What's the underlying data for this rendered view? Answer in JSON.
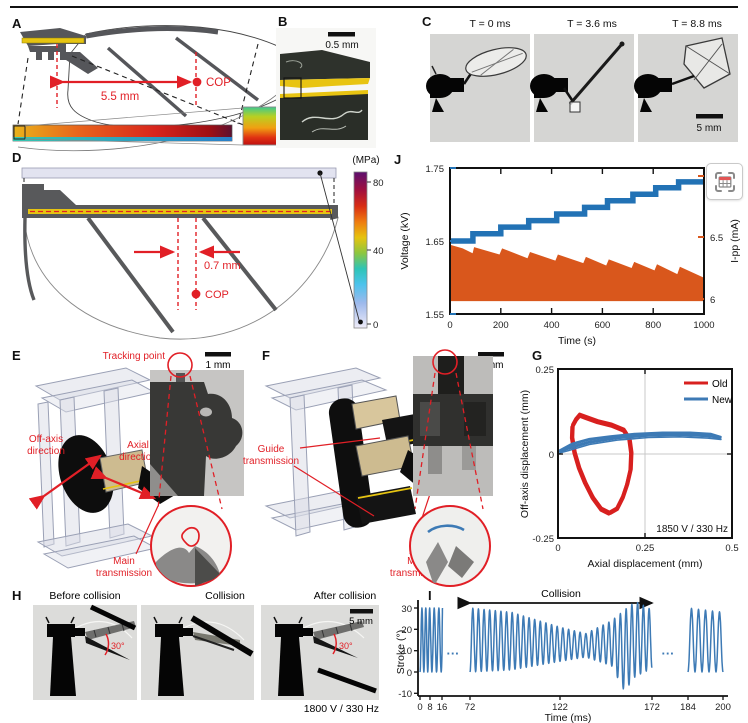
{
  "colors": {
    "red": "#e11f26",
    "blue": "#2272b5",
    "orange": "#d9571c",
    "yellow": "#e6c412",
    "wing_gray": "#55565a"
  },
  "panel_a": {
    "label": "A",
    "distance": "5.5 mm",
    "cop": "COP"
  },
  "panel_b": {
    "label": "B",
    "scale": "0.5 mm"
  },
  "panel_c": {
    "label": "C",
    "frames": [
      "T = 0 ms",
      "T = 3.6 ms",
      "T = 8.8 ms"
    ],
    "scale": "5 mm"
  },
  "panel_d": {
    "label": "D",
    "distance": "0.7 mm",
    "cop": "COP",
    "colorbar_title": "(MPa)",
    "colorbar_ticks": [
      "80",
      "40",
      "0"
    ]
  },
  "panel_e": {
    "label": "E",
    "scale": "1 mm",
    "tracking": "Tracking point",
    "offaxis1": "Off-axis",
    "offaxis2": "direction",
    "axial1": "Axial",
    "axial2": "direction",
    "main1": "Main",
    "main2": "transmission"
  },
  "panel_f": {
    "label": "F",
    "scale": "1 mm",
    "guide1": "Guide",
    "guide2": "transmission",
    "main1": "Main",
    "main2": "transmission"
  },
  "panel_g": {
    "label": "G"
  },
  "panel_h": {
    "label": "H",
    "frames": [
      "Before collision",
      "Collision",
      "After collision"
    ],
    "scale": "5 mm",
    "angle": "30°",
    "note": "1800 V / 330 Hz"
  },
  "panel_i": {
    "label": "I"
  },
  "panel_j": {
    "label": "J"
  },
  "overlay": {
    "button": "extract-chart-data"
  },
  "chart_data": [
    {
      "id": "G",
      "type": "line",
      "xlabel": "Axial displacement (mm)",
      "ylabel": "Off-axis displacement (mm)",
      "xlim": [
        0,
        0.5
      ],
      "ylim": [
        -0.25,
        0.25
      ],
      "xticks": [
        0,
        0.25,
        0.5
      ],
      "yticks": [
        0.25,
        0,
        -0.25
      ],
      "xtick_labels": [
        "0",
        "0.25",
        "0.5"
      ],
      "ytick_labels_top_down": [
        "0.25",
        "0",
        "-0.25"
      ],
      "annotation": "1850 V / 330 Hz",
      "grid": "crosshair at x=0.25, y=0",
      "legend_position": "top-right",
      "legend": [
        {
          "name": "Old",
          "color": "#d8201f"
        },
        {
          "name": "New",
          "color": "#3d7ab5"
        }
      ],
      "series": [
        {
          "name": "Old",
          "color": "#d8201f",
          "closed": true,
          "width": 2.4,
          "points": [
            [
              0.05,
              0.105
            ],
            [
              0.062,
              0.12
            ],
            [
              0.08,
              0.113
            ],
            [
              0.115,
              0.1
            ],
            [
              0.155,
              0.09
            ],
            [
              0.19,
              0.075
            ],
            [
              0.205,
              0.05
            ],
            [
              0.21,
              0.01
            ],
            [
              0.208,
              -0.04
            ],
            [
              0.198,
              -0.085
            ],
            [
              0.185,
              -0.125
            ],
            [
              0.168,
              -0.16
            ],
            [
              0.148,
              -0.172
            ],
            [
              0.125,
              -0.16
            ],
            [
              0.1,
              -0.125
            ],
            [
              0.078,
              -0.08
            ],
            [
              0.06,
              -0.035
            ],
            [
              0.047,
              0.01
            ],
            [
              0.04,
              0.055
            ],
            [
              0.041,
              0.088
            ]
          ]
        },
        {
          "name": "New",
          "color": "#3d7ab5",
          "closed": true,
          "width": 1.6,
          "points": [
            [
              0.005,
              0.008
            ],
            [
              0.04,
              0.028
            ],
            [
              0.09,
              0.042
            ],
            [
              0.15,
              0.05
            ],
            [
              0.22,
              0.057
            ],
            [
              0.3,
              0.061
            ],
            [
              0.38,
              0.061
            ],
            [
              0.44,
              0.057
            ],
            [
              0.468,
              0.048
            ],
            [
              0.43,
              0.052
            ],
            [
              0.35,
              0.056
            ],
            [
              0.26,
              0.054
            ],
            [
              0.17,
              0.046
            ],
            [
              0.09,
              0.033
            ],
            [
              0.03,
              0.015
            ]
          ]
        }
      ]
    },
    {
      "id": "I",
      "type": "line",
      "xlabel": "Time (ms)",
      "ylabel": "Stroke (°)",
      "yticks": [
        30,
        20,
        10,
        0,
        -10
      ],
      "ytick_labels_top_down": [
        "30",
        "20",
        "10",
        "0",
        "-10"
      ],
      "xticks": [
        0,
        8,
        16,
        72,
        122,
        172,
        184,
        200
      ],
      "xtick_labels": [
        "0",
        "8",
        "16",
        "72",
        "122",
        "172",
        "184",
        "200"
      ],
      "annotation": "Collision",
      "annotation_span_ms": [
        72,
        172
      ],
      "series_color": "#3d7ab5",
      "gap_marker": "···",
      "broken_axis": true,
      "segments": [
        {
          "t": [
            0,
            17
          ],
          "cycles": 5.5,
          "envelope": [
            [
              0,
              0,
              30
            ],
            [
              17,
              0,
              30
            ]
          ]
        },
        {
          "t": [
            72,
            172
          ],
          "cycles": 32,
          "envelope": [
            [
              72,
              0,
              30
            ],
            [
              95,
              1,
              28
            ],
            [
              122,
              5,
              21
            ],
            [
              136,
              7,
              18
            ],
            [
              150,
              3,
              24
            ],
            [
              157,
              -9,
              29
            ],
            [
              163,
              -2,
              33
            ],
            [
              168,
              0,
              31
            ],
            [
              172,
              2,
              29
            ]
          ]
        },
        {
          "t": [
            184,
            200
          ],
          "cycles": 5,
          "envelope": [
            [
              184,
              0,
              30
            ],
            [
              200,
              0,
              28
            ]
          ]
        }
      ]
    },
    {
      "id": "J",
      "type": "line",
      "xlabel": "Time (s)",
      "ylabel_left": "Voltage (kV)",
      "ylabel_right": "I-pp (mA)",
      "xticks": [
        0,
        200,
        400,
        600,
        800,
        1000
      ],
      "xtick_labels": [
        "0",
        "200",
        "400",
        "600",
        "800",
        "1000"
      ],
      "yticks_left": [
        1.75,
        1.65,
        1.55
      ],
      "ytick_labels_left_top_down": [
        "1.75",
        "1.65",
        "1.55"
      ],
      "yticks_right": [
        7,
        6.5,
        6
      ],
      "ytick_labels_right_top_down": [
        "7",
        "6.5",
        "6"
      ],
      "left_range": [
        1.55,
        1.75
      ],
      "right_range": [
        5.875,
        7.065
      ],
      "voltage_color": "#2272b5",
      "current_color": "#d9571c",
      "voltage_steps": {
        "times": [
          0,
          90,
          200,
          310,
          420,
          530,
          620,
          720,
          810,
          900,
          1000
        ],
        "levels": [
          1.65,
          1.66,
          1.669,
          1.678,
          1.687,
          1.696,
          1.705,
          1.714,
          1.723,
          1.731
        ]
      },
      "current_envelope": [
        [
          0,
          6.44
        ],
        [
          50,
          6.41
        ],
        [
          89,
          6.37
        ],
        [
          95,
          6.42
        ],
        [
          195,
          6.36
        ],
        [
          205,
          6.41
        ],
        [
          305,
          6.33
        ],
        [
          315,
          6.38
        ],
        [
          415,
          6.31
        ],
        [
          425,
          6.36
        ],
        [
          525,
          6.29
        ],
        [
          535,
          6.34
        ],
        [
          615,
          6.27
        ],
        [
          625,
          6.32
        ],
        [
          715,
          6.25
        ],
        [
          725,
          6.3
        ],
        [
          805,
          6.23
        ],
        [
          815,
          6.28
        ],
        [
          895,
          6.2
        ],
        [
          905,
          6.26
        ],
        [
          1000,
          6.17
        ]
      ],
      "current_base": 5.98
    }
  ]
}
